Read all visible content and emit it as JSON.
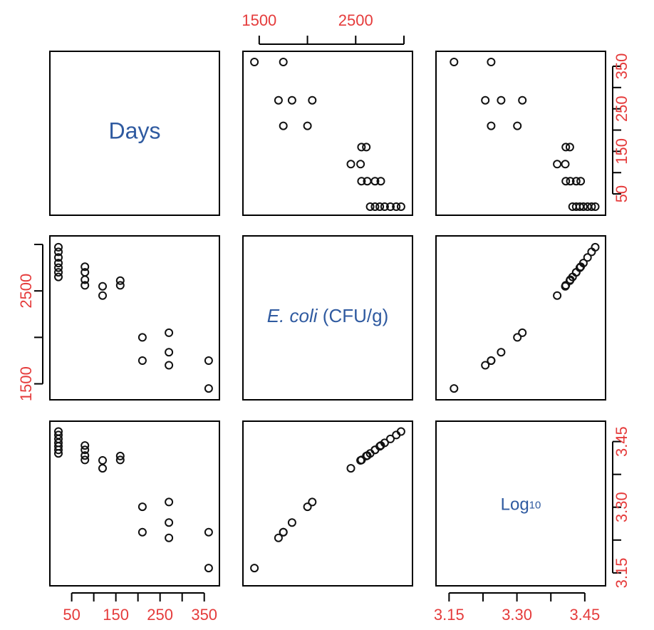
{
  "chart_data": {
    "type": "scatter-matrix",
    "variables": [
      {
        "key": "days",
        "label": "Days",
        "ticks": [
          50,
          150,
          250,
          350
        ],
        "range": [
          20,
          365
        ]
      },
      {
        "key": "ecoli",
        "label_italic": "E. coli",
        "label_rest": " (CFU/g)",
        "ticks": [
          1500,
          2500
        ],
        "range": [
          1420,
          3000
        ]
      },
      {
        "key": "log10",
        "label_main": "Log",
        "label_sub": "10",
        "ticks": [
          "3.15",
          "3.30",
          "3.45"
        ],
        "range": [
          3.14,
          3.477
        ]
      }
    ],
    "points": [
      {
        "days": 20,
        "ecoli": 2650,
        "log10": 3.423
      },
      {
        "days": 20,
        "ecoli": 2700,
        "log10": 3.431
      },
      {
        "days": 20,
        "ecoli": 2750,
        "log10": 3.439
      },
      {
        "days": 20,
        "ecoli": 2800,
        "log10": 3.447
      },
      {
        "days": 20,
        "ecoli": 2860,
        "log10": 3.456
      },
      {
        "days": 20,
        "ecoli": 2920,
        "log10": 3.465
      },
      {
        "days": 20,
        "ecoli": 2970,
        "log10": 3.473
      },
      {
        "days": 80,
        "ecoli": 2560,
        "log10": 3.408
      },
      {
        "days": 80,
        "ecoli": 2620,
        "log10": 3.418
      },
      {
        "days": 80,
        "ecoli": 2700,
        "log10": 3.431
      },
      {
        "days": 80,
        "ecoli": 2760,
        "log10": 3.441
      },
      {
        "days": 120,
        "ecoli": 2450,
        "log10": 3.389
      },
      {
        "days": 120,
        "ecoli": 2550,
        "log10": 3.407
      },
      {
        "days": 160,
        "ecoli": 2560,
        "log10": 3.408
      },
      {
        "days": 160,
        "ecoli": 2610,
        "log10": 3.417
      },
      {
        "days": 210,
        "ecoli": 1750,
        "log10": 3.243
      },
      {
        "days": 210,
        "ecoli": 2000,
        "log10": 3.301
      },
      {
        "days": 270,
        "ecoli": 1700,
        "log10": 3.23
      },
      {
        "days": 270,
        "ecoli": 1840,
        "log10": 3.265
      },
      {
        "days": 270,
        "ecoli": 2050,
        "log10": 3.312
      },
      {
        "days": 360,
        "ecoli": 1450,
        "log10": 3.161
      },
      {
        "days": 360,
        "ecoli": 1750,
        "log10": 3.243
      }
    ]
  }
}
